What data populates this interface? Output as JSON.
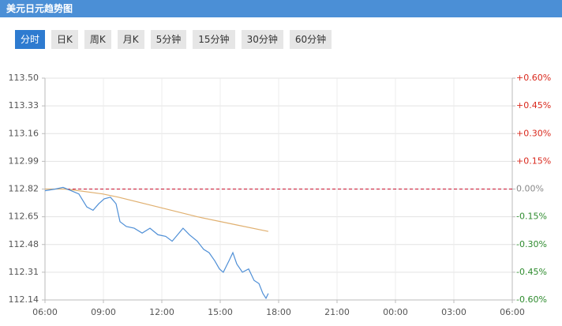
{
  "header": {
    "title": "美元日元趋势图"
  },
  "tabs": {
    "items": [
      "分时",
      "日K",
      "周K",
      "月K",
      "5分钟",
      "15分钟",
      "30分钟",
      "60分钟"
    ],
    "active": 0
  },
  "chart_data": {
    "type": "line",
    "xlim": [
      0,
      24
    ],
    "xticks": [
      {
        "value": 0,
        "label": "06:00"
      },
      {
        "value": 3,
        "label": "09:00"
      },
      {
        "value": 6,
        "label": "12:00"
      },
      {
        "value": 9,
        "label": "15:00"
      },
      {
        "value": 12,
        "label": "18:00"
      },
      {
        "value": 15,
        "label": "21:00"
      },
      {
        "value": 18,
        "label": "00:00"
      },
      {
        "value": 21,
        "label": "03:00"
      },
      {
        "value": 24,
        "label": "06:00"
      }
    ],
    "ylim": [
      112.14,
      113.5
    ],
    "yticks": [
      {
        "value": 113.5,
        "label": "113.50"
      },
      113.33,
      113.16,
      112.99,
      112.82,
      112.65,
      112.48,
      112.31,
      112.14
    ],
    "y2lim": [
      -0.6,
      0.6
    ],
    "y2ticks": [
      {
        "value": 0.6,
        "label": "+0.60%"
      },
      {
        "value": 0.45,
        "label": "+0.45%"
      },
      {
        "value": 0.3,
        "label": "+0.30%"
      },
      {
        "value": 0.15,
        "label": "+0.15%"
      },
      {
        "value": 0,
        "label": "0.00%"
      },
      {
        "value": -0.15,
        "label": "-0.15%"
      },
      {
        "value": -0.3,
        "label": "-0.30%"
      },
      {
        "value": -0.45,
        "label": "-0.45%"
      },
      {
        "value": -0.6,
        "label": "-0.60%"
      }
    ],
    "up_color": "#d9281c",
    "down_color": "#2e8b2e",
    "flat_color": "#888888",
    "grid": true,
    "reference_line": {
      "value": 112.82,
      "color": "#c8102e"
    },
    "series": [
      {
        "color": "#4f8fd6",
        "x": [
          0,
          0.53,
          0.93,
          1.34,
          1.74,
          2.15,
          2.47,
          2.76,
          3.04,
          3.36,
          3.65,
          3.85,
          4.18,
          4.58,
          4.99,
          5.39,
          5.8,
          6.2,
          6.53,
          6.81,
          7.09,
          7.42,
          7.82,
          8.15,
          8.43,
          8.72,
          8.96,
          9.16,
          9.45,
          9.65,
          9.85,
          10.14,
          10.46,
          10.74,
          10.99,
          11.19,
          11.35,
          11.47
        ],
        "values": [
          112.81,
          112.82,
          112.83,
          112.81,
          112.79,
          112.71,
          112.69,
          112.73,
          112.76,
          112.77,
          112.73,
          112.62,
          112.59,
          112.58,
          112.55,
          112.58,
          112.54,
          112.53,
          112.5,
          112.54,
          112.58,
          112.54,
          112.5,
          112.45,
          112.43,
          112.38,
          112.33,
          112.31,
          112.38,
          112.43,
          112.36,
          112.31,
          112.33,
          112.26,
          112.24,
          112.18,
          112.15,
          112.18
        ]
      },
      {
        "color": "#e0b070",
        "x": [
          0,
          1,
          1.74,
          2.96,
          3.77,
          5.8,
          7.82,
          9.85,
          11.47
        ],
        "values": [
          112.82,
          112.82,
          112.81,
          112.79,
          112.77,
          112.71,
          112.65,
          112.6,
          112.56
        ]
      }
    ]
  }
}
